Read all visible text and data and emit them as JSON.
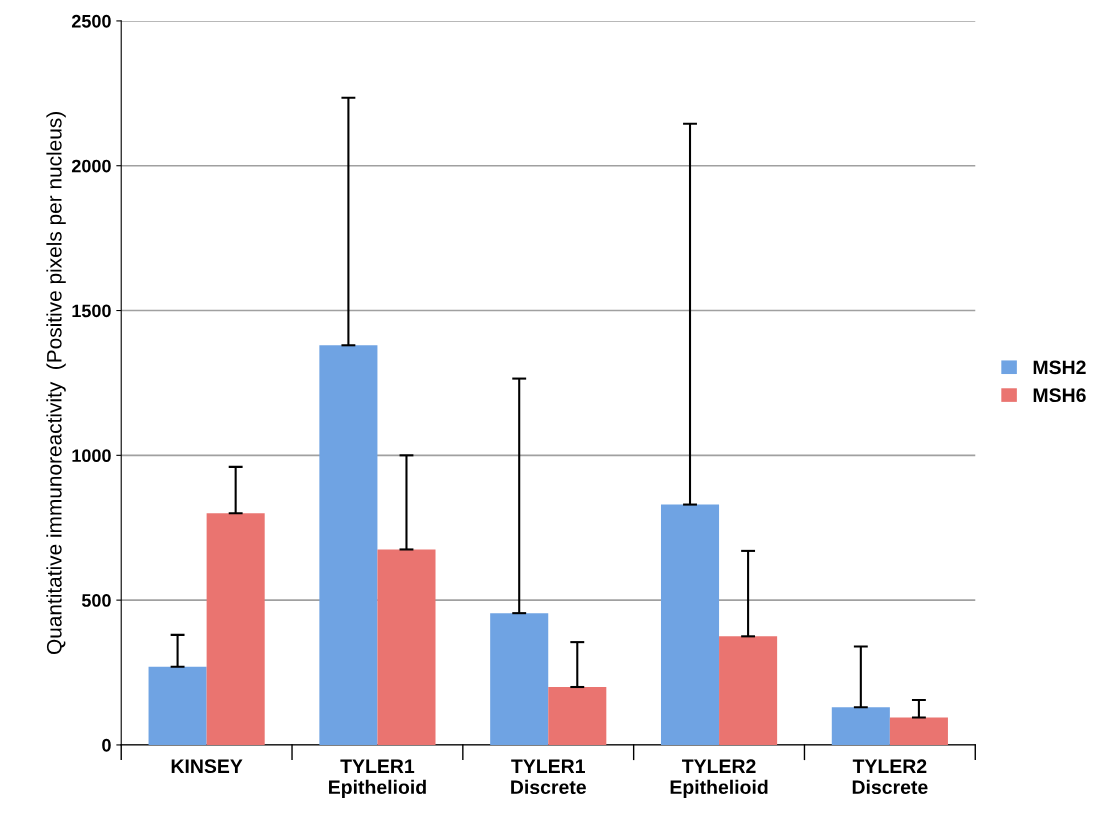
{
  "chart_data": {
    "type": "bar",
    "ylabel": "Quantitative immunoreactivity  (Positive pixels per nucleus)",
    "categories": [
      "KINSEY",
      "TYLER1\nEpithelioid",
      "TYLER1\nDiscrete",
      "TYLER2\nEpithelioid",
      "TYLER2\nDiscrete"
    ],
    "series": [
      {
        "name": "MSH2",
        "color": "#6fa3e3",
        "values": [
          270,
          1380,
          455,
          830,
          130
        ],
        "errors": [
          [
            270,
            380
          ],
          [
            1380,
            2235
          ],
          [
            455,
            1265
          ],
          [
            830,
            2145
          ],
          [
            130,
            340
          ]
        ]
      },
      {
        "name": "MSH6",
        "color": "#ea7470",
        "values": [
          800,
          675,
          200,
          375,
          95
        ],
        "errors": [
          [
            800,
            960
          ],
          [
            675,
            1000
          ],
          [
            200,
            355
          ],
          [
            375,
            670
          ],
          [
            95,
            155
          ]
        ]
      }
    ],
    "ylim": [
      0,
      2500
    ],
    "yticks": [
      0,
      500,
      1000,
      1500,
      2000,
      2500
    ],
    "grid": "y",
    "legend": "right"
  }
}
